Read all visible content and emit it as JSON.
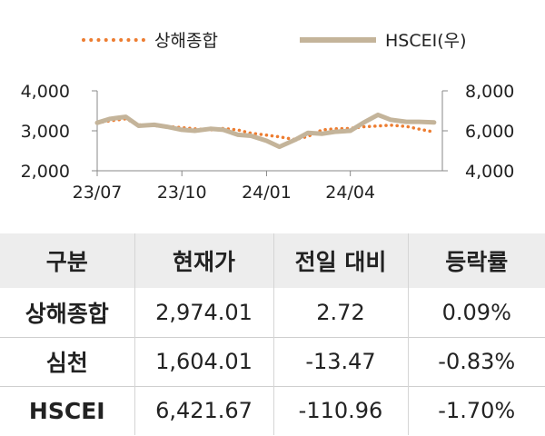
{
  "chart_data": {
    "type": "line",
    "series": [
      {
        "name": "상해종합",
        "axis": "left",
        "color": "#ED7D31",
        "style": "dotted",
        "x": [
          "2023-07-01",
          "2023-07-15",
          "2023-08-01",
          "2023-08-15",
          "2023-09-01",
          "2023-09-15",
          "2023-10-01",
          "2023-10-15",
          "2023-11-01",
          "2023-11-15",
          "2023-12-01",
          "2023-12-15",
          "2024-01-01",
          "2024-01-15",
          "2024-02-01",
          "2024-02-15",
          "2024-03-01",
          "2024-03-15",
          "2024-04-01",
          "2024-04-15",
          "2024-05-01",
          "2024-05-15",
          "2024-06-01",
          "2024-06-15",
          "2024-07-01"
        ],
        "values": [
          3200,
          3250,
          3300,
          3150,
          3130,
          3110,
          3080,
          3050,
          3020,
          3060,
          3020,
          2940,
          2890,
          2850,
          2780,
          2860,
          3020,
          3050,
          3060,
          3100,
          3120,
          3140,
          3110,
          3040,
          2970
        ]
      },
      {
        "name": "HSCEI(우)",
        "axis": "right",
        "color": "#C4B49A",
        "style": "solid",
        "x": [
          "2023-07-01",
          "2023-07-15",
          "2023-08-01",
          "2023-08-15",
          "2023-09-01",
          "2023-09-15",
          "2023-10-01",
          "2023-10-15",
          "2023-11-01",
          "2023-11-15",
          "2023-12-01",
          "2023-12-15",
          "2024-01-01",
          "2024-01-15",
          "2024-02-01",
          "2024-02-15",
          "2024-03-01",
          "2024-03-15",
          "2024-04-01",
          "2024-04-15",
          "2024-05-01",
          "2024-05-15",
          "2024-06-01",
          "2024-06-15",
          "2024-07-01"
        ],
        "values": [
          6400,
          6600,
          6700,
          6250,
          6300,
          6200,
          6050,
          6000,
          6100,
          6050,
          5800,
          5750,
          5500,
          5200,
          5550,
          5900,
          5850,
          5950,
          6000,
          6400,
          6800,
          6550,
          6450,
          6450,
          6420
        ]
      }
    ],
    "y_left": {
      "ticks": [
        "4,000",
        "3,000",
        "2,000"
      ],
      "range": [
        2000,
        4000
      ]
    },
    "y_right": {
      "ticks": [
        "8,000",
        "6,000",
        "4,000"
      ],
      "range": [
        4000,
        8000
      ]
    },
    "x_axis": {
      "range": [
        "2023-07-01",
        "2024-07-10"
      ],
      "ticks": [
        {
          "label": "23/07",
          "date": "2023-07-01"
        },
        {
          "label": "23/10",
          "date": "2023-10-01"
        },
        {
          "label": "24/01",
          "date": "2024-01-01"
        },
        {
          "label": "24/04",
          "date": "2024-04-01"
        }
      ]
    },
    "legend_placement": "top"
  },
  "table": {
    "headers": [
      "구분",
      "현재가",
      "전일 대비",
      "등락률"
    ],
    "rows": [
      {
        "name": "상해종합",
        "price": "2,974.01",
        "change": "2.72",
        "pct": "0.09%"
      },
      {
        "name": "심천",
        "price": "1,604.01",
        "change": "-13.47",
        "pct": "-0.83%"
      },
      {
        "name": "HSCEI",
        "price": "6,421.67",
        "change": "-110.96",
        "pct": "-1.70%"
      }
    ]
  }
}
